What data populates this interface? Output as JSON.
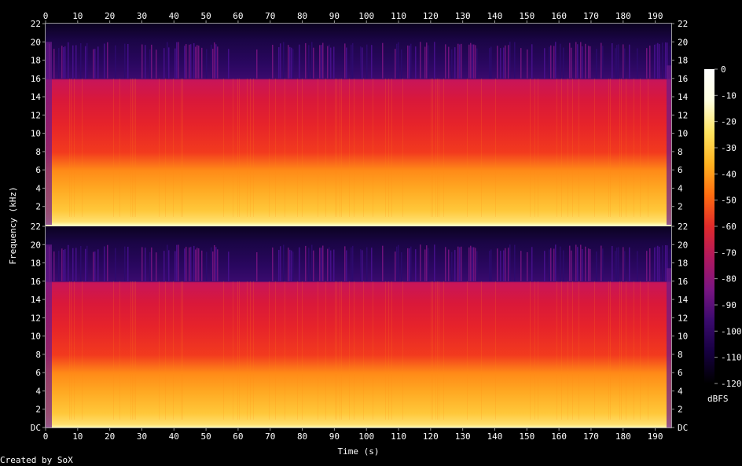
{
  "chart_data": {
    "type": "heatmap",
    "title": "",
    "xlabel": "Time (s)",
    "ylabel": "Frequency (kHz)",
    "footer": "Created by SoX",
    "xlim": [
      0,
      195
    ],
    "ylim_khz": [
      0,
      22
    ],
    "x_ticks": [
      0,
      10,
      20,
      30,
      40,
      50,
      60,
      70,
      80,
      90,
      100,
      110,
      120,
      130,
      140,
      150,
      160,
      170,
      180,
      190
    ],
    "y_ticks": [
      "DC",
      "2",
      "4",
      "6",
      "8",
      "10",
      "12",
      "14",
      "16",
      "18",
      "20",
      "22"
    ],
    "channels": [
      {
        "name": "",
        "lowpass_cutoff_khz": 16,
        "sparse_content_up_to_khz": 20
      },
      {
        "name": "",
        "lowpass_cutoff_khz": 16,
        "sparse_content_up_to_khz": 20
      }
    ],
    "colorbar": {
      "label": "dBFS",
      "ticks": [
        "0",
        "-10",
        "-20",
        "-30",
        "-40",
        "-50",
        "-60",
        "-70",
        "-80",
        "-90",
        "-100",
        "-110",
        "-120"
      ],
      "range": [
        -120,
        0
      ],
      "colors": [
        "#000000",
        "#160040",
        "#3a0a6e",
        "#7a1582",
        "#b0185e",
        "#e02a2a",
        "#ff6d10",
        "#ffb320",
        "#ffe460",
        "#ffffe0",
        "#ffffff"
      ]
    }
  }
}
